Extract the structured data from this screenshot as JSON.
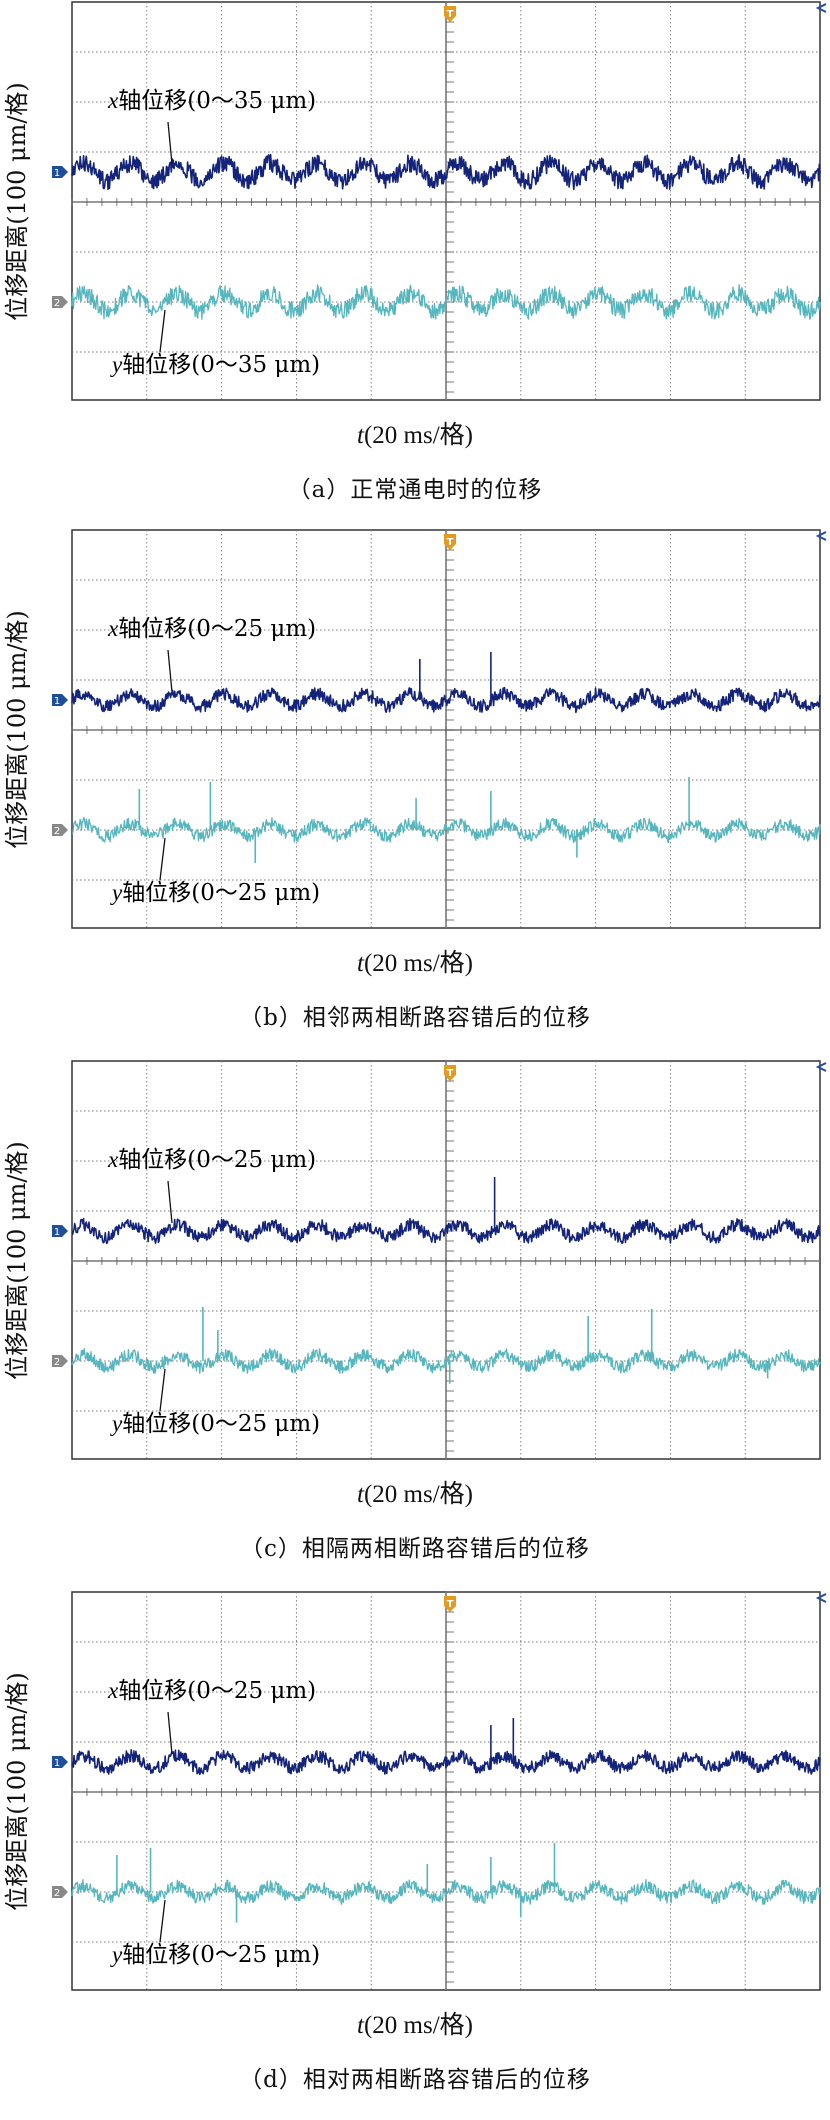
{
  "ylabel": "位移距离(100 μm/格)",
  "tlabel_var": "t",
  "tlabel_rest": "(20 ms/格)",
  "colors": {
    "x_trace": "#14247a",
    "y_trace": "#56b6be",
    "grid": "#777777",
    "trigger": "#e39a1e",
    "ch1_marker": "#1f4f99",
    "ch2_marker": "#888888"
  },
  "chart_data": [
    {
      "type": "line",
      "title": "（a）正常通电时的位移",
      "xlabel": "t(20 ms/格)",
      "ylabel": "位移距离(100 μm/格)",
      "x_unit": "ms",
      "x_div": 20,
      "x_divisions": 10,
      "xlim": [
        0,
        200
      ],
      "series": [
        {
          "name": "x轴位移",
          "label_var": "x",
          "label_rest": "轴位移(0～35 μm)",
          "peak_to_peak_um": 35,
          "period_ms": 12.5,
          "spikes_ms": []
        },
        {
          "name": "y轴位移",
          "label_var": "y",
          "label_rest": "轴位移(0～35 μm)",
          "peak_to_peak_um": 35,
          "period_ms": 12.5,
          "spikes_ms": []
        }
      ]
    },
    {
      "type": "line",
      "title": "（b）相邻两相断路容错后的位移",
      "xlabel": "t(20 ms/格)",
      "ylabel": "位移距离(100 μm/格)",
      "x_unit": "ms",
      "x_div": 20,
      "x_divisions": 10,
      "xlim": [
        0,
        200
      ],
      "series": [
        {
          "name": "x轴位移",
          "label_var": "x",
          "label_rest": "轴位移(0～25 μm)",
          "peak_to_peak_um": 25,
          "period_ms": 12.5,
          "spikes_ms": [
            93,
            112
          ]
        },
        {
          "name": "y轴位移",
          "label_var": "y",
          "label_rest": "轴位移(0～25 μm)",
          "peak_to_peak_um": 25,
          "period_ms": 12.5,
          "spikes_ms": [
            18,
            37,
            49,
            92,
            112,
            135,
            165
          ]
        }
      ]
    },
    {
      "type": "line",
      "title": "（c）相隔两相断路容错后的位移",
      "xlabel": "t(20 ms/格)",
      "ylabel": "位移距离(100 μm/格)",
      "x_unit": "ms",
      "x_div": 20,
      "x_divisions": 10,
      "xlim": [
        0,
        200
      ],
      "series": [
        {
          "name": "x轴位移",
          "label_var": "x",
          "label_rest": "轴位移(0～25 μm)",
          "peak_to_peak_um": 25,
          "period_ms": 12.5,
          "spikes_ms": [
            113
          ]
        },
        {
          "name": "y轴位移",
          "label_var": "y",
          "label_rest": "轴位移(0～25 μm)",
          "peak_to_peak_um": 25,
          "period_ms": 12.5,
          "spikes_ms": [
            35,
            39,
            101,
            138,
            155,
            186
          ]
        }
      ]
    },
    {
      "type": "line",
      "title": "（d）相对两相断路容错后的位移",
      "xlabel": "t(20 ms/格)",
      "ylabel": "位移距离(100 μm/格)",
      "x_unit": "ms",
      "x_div": 20,
      "x_divisions": 10,
      "xlim": [
        0,
        200
      ],
      "series": [
        {
          "name": "x轴位移",
          "label_var": "x",
          "label_rest": "轴位移(0～25 μm)",
          "peak_to_peak_um": 25,
          "period_ms": 12.5,
          "spikes_ms": [
            112,
            118
          ]
        },
        {
          "name": "y轴位移",
          "label_var": "y",
          "label_rest": "轴位移(0～25 μm)",
          "peak_to_peak_um": 25,
          "period_ms": 12.5,
          "spikes_ms": [
            12,
            21,
            44,
            95,
            112,
            120,
            129
          ]
        }
      ]
    }
  ]
}
